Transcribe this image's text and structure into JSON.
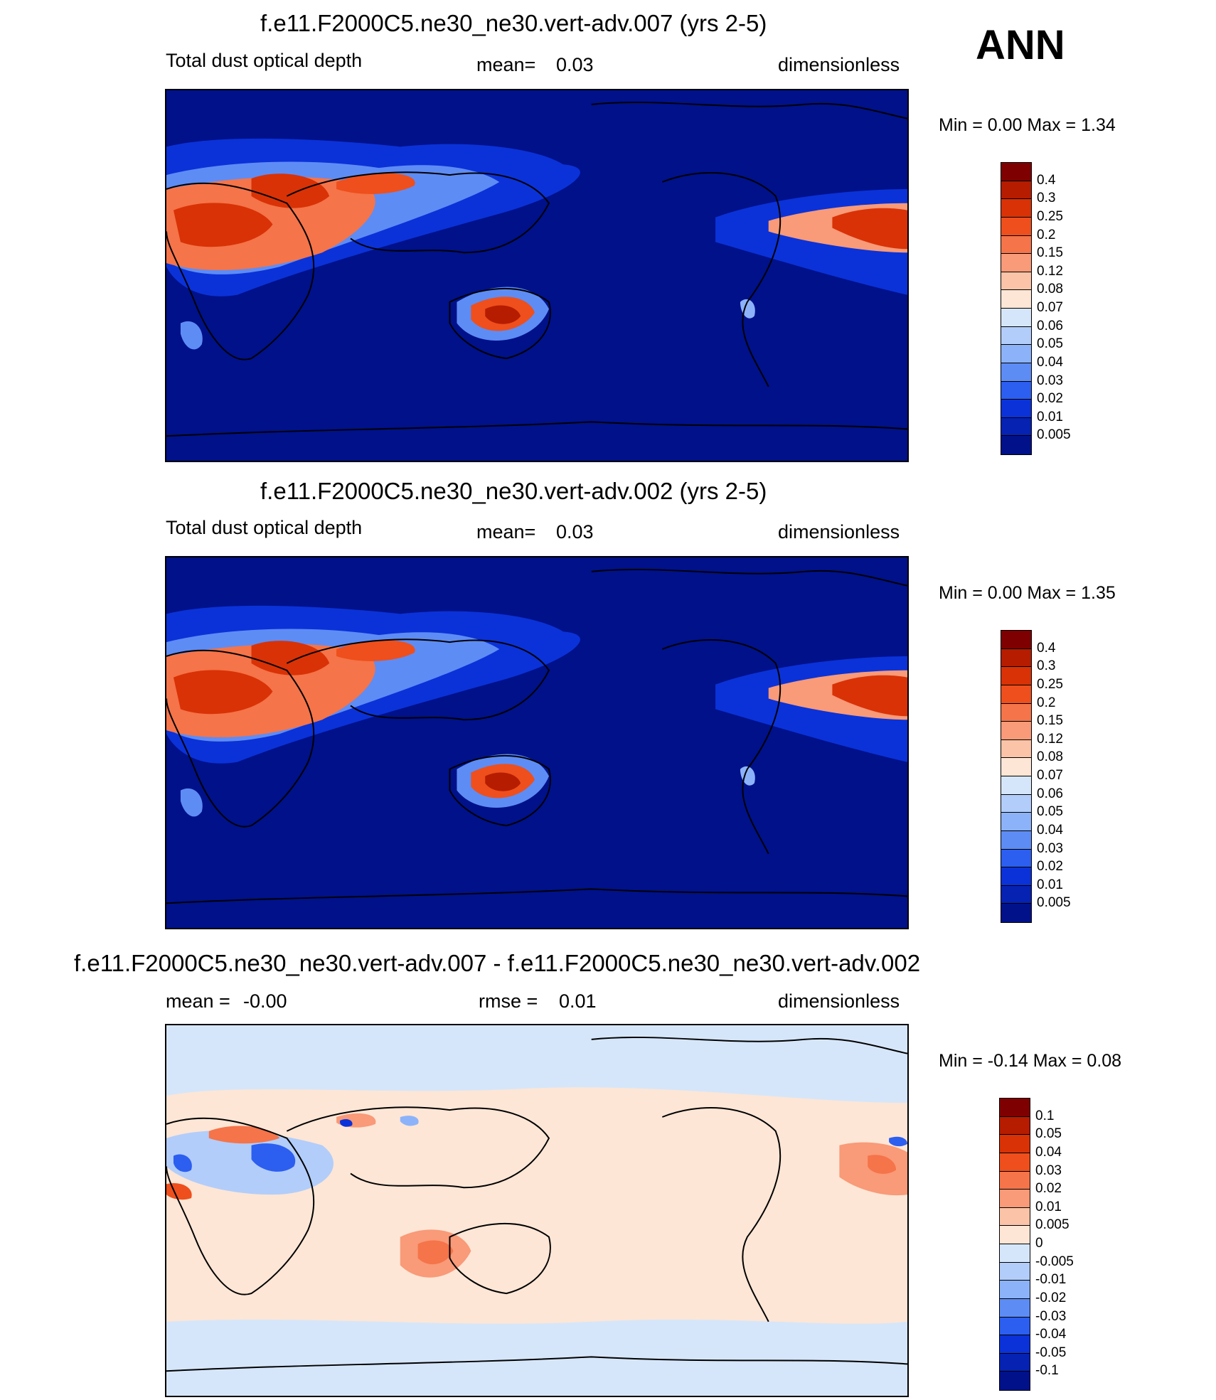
{
  "season": "ANN",
  "chart_data": [
    {
      "type": "heatmap",
      "title": "f.e11.F2000C5.ne30_ne30.vert-adv.007 (yrs 2-5)",
      "variable": "Total dust optical depth",
      "stat_label": "mean=",
      "stat_value": "0.03",
      "units": "dimensionless",
      "minmax": "Min =   0.00 Max =   1.34",
      "colorbar_levels": [
        "0.4",
        "0.3",
        "0.25",
        "0.2",
        "0.15",
        "0.12",
        "0.08",
        "0.07",
        "0.06",
        "0.05",
        "0.04",
        "0.03",
        "0.02",
        "0.01",
        "0.005"
      ],
      "colors": [
        "#7f0000",
        "#b51c00",
        "#d93206",
        "#ee4f1c",
        "#f57449",
        "#f99a78",
        "#fbc3a7",
        "#fde6d6",
        "#d6e6fa",
        "#b2cdfa",
        "#8cb3fa",
        "#5e8cf5",
        "#2c5ef0",
        "#0b32d8",
        "#0522b3",
        "#00118a"
      ],
      "ocean_color": "#00118a"
    },
    {
      "type": "heatmap",
      "title": "f.e11.F2000C5.ne30_ne30.vert-adv.002 (yrs 2-5)",
      "variable": "Total dust optical depth",
      "stat_label": "mean=",
      "stat_value": "0.03",
      "units": "dimensionless",
      "minmax": "Min =   0.00 Max =   1.35",
      "colorbar_levels": [
        "0.4",
        "0.3",
        "0.25",
        "0.2",
        "0.15",
        "0.12",
        "0.08",
        "0.07",
        "0.06",
        "0.05",
        "0.04",
        "0.03",
        "0.02",
        "0.01",
        "0.005"
      ],
      "colors": [
        "#7f0000",
        "#b51c00",
        "#d93206",
        "#ee4f1c",
        "#f57449",
        "#f99a78",
        "#fbc3a7",
        "#fde6d6",
        "#d6e6fa",
        "#b2cdfa",
        "#8cb3fa",
        "#5e8cf5",
        "#2c5ef0",
        "#0b32d8",
        "#0522b3",
        "#00118a"
      ],
      "ocean_color": "#00118a"
    },
    {
      "type": "heatmap",
      "title": "f.e11.F2000C5.ne30_ne30.vert-adv.007 - f.e11.F2000C5.ne30_ne30.vert-adv.002",
      "stat_label": "mean =",
      "stat_value": "-0.00",
      "rmse_label": "rmse =",
      "rmse_value": "0.01",
      "units": "dimensionless",
      "minmax": "Min =  -0.14 Max =   0.08",
      "colorbar_levels": [
        "0.1",
        "0.05",
        "0.04",
        "0.03",
        "0.02",
        "0.01",
        "0.005",
        "0",
        "-0.005",
        "-0.01",
        "-0.02",
        "-0.03",
        "-0.04",
        "-0.05",
        "-0.1"
      ],
      "colors": [
        "#7f0000",
        "#b51c00",
        "#d93206",
        "#ee4f1c",
        "#f57449",
        "#f99a78",
        "#fbc3a7",
        "#fde6d6",
        "#d6e6fa",
        "#b2cdfa",
        "#8cb3fa",
        "#5e8cf5",
        "#2c5ef0",
        "#0b32d8",
        "#0522b3",
        "#00118a"
      ],
      "ocean_color": "#fde6d6"
    }
  ]
}
